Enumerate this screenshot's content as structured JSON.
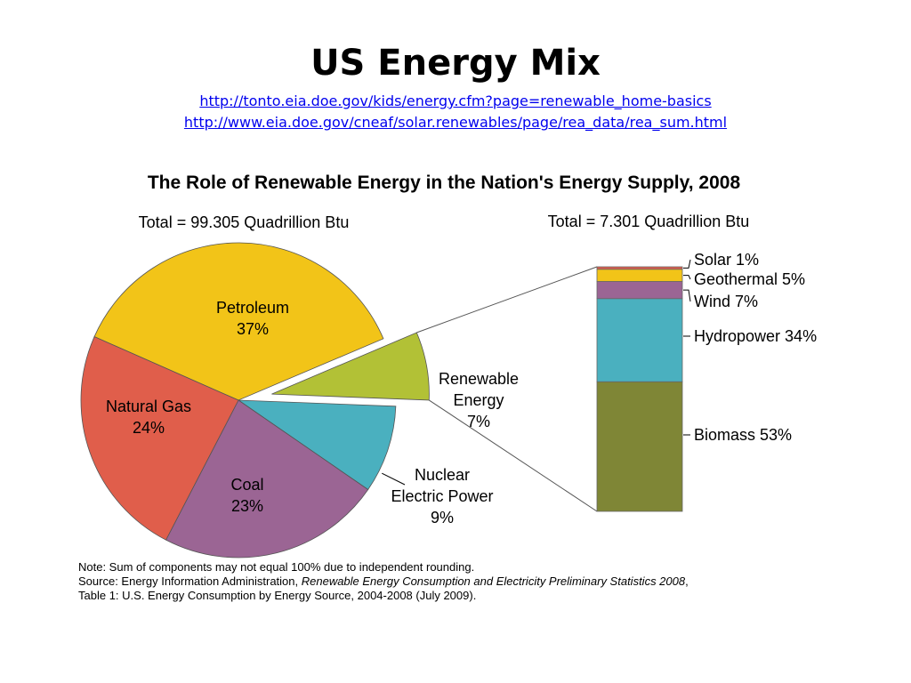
{
  "slide": {
    "title": "US Energy Mix",
    "links": [
      "http://tonto.eia.doe.gov/kids/energy.cfm?page=renewable_home-basics",
      "http://www.eia.doe.gov/cneaf/solar.renewables/page/rea_data/rea_sum.html"
    ]
  },
  "chart_data": [
    {
      "type": "pie",
      "title": "The Role of Renewable Energy in the Nation's Energy Supply, 2008",
      "subtitle": "Total = 99.305 Quadrillion Btu",
      "slices": [
        {
          "label": "Petroleum",
          "value": 37,
          "pct_label": "37%",
          "color": "#f2c418"
        },
        {
          "label": "Renewable Energy",
          "value": 7,
          "pct_label": "7%",
          "color": "#b2c136",
          "exploded": true
        },
        {
          "label": "Nuclear Electric Power",
          "value": 9,
          "pct_label": "9%",
          "color": "#4ab0bf"
        },
        {
          "label": "Coal",
          "value": 23,
          "pct_label": "23%",
          "color": "#9b6594"
        },
        {
          "label": "Natural Gas",
          "value": 24,
          "pct_label": "24%",
          "color": "#e05e4b"
        }
      ]
    },
    {
      "type": "bar",
      "stacked": true,
      "subtitle": "Total = 7.301 Quadrillion Btu",
      "segments": [
        {
          "label": "Biomass",
          "value": 53,
          "pct_label": "53%",
          "color": "#7f8636"
        },
        {
          "label": "Hydropower",
          "value": 34,
          "pct_label": "34%",
          "color": "#4ab0bf"
        },
        {
          "label": "Wind",
          "value": 7,
          "pct_label": "7%",
          "color": "#9b6594"
        },
        {
          "label": "Geothermal",
          "value": 5,
          "pct_label": "5%",
          "color": "#f2c418"
        },
        {
          "label": "Solar",
          "value": 1,
          "pct_label": "1%",
          "color": "#e05e4b"
        }
      ]
    }
  ],
  "notes": {
    "line1": "Note: Sum of components may not equal 100% due to independent rounding.",
    "line2_prefix": "Source: Energy Information Administration, ",
    "line2_italic": "Renewable Energy Consumption and Electricity Preliminary Statistics 2008",
    "line2_suffix": ",",
    "line3": "Table 1: U.S. Energy Consumption by Energy Source, 2004-2008 (July 2009)."
  }
}
